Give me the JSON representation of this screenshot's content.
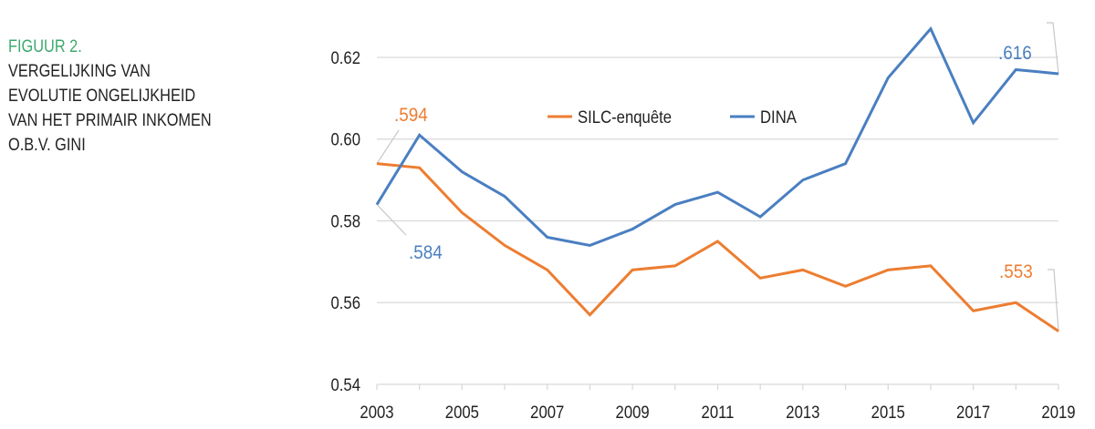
{
  "figure": {
    "label": "FIGUUR 2.",
    "title_lines": [
      "VERGELIJKING VAN",
      "EVOLUTIE ONGELIJKHEID",
      "VAN HET PRIMAIR INKOMEN",
      "O.B.V. GINI"
    ]
  },
  "colors": {
    "label_green": "#3daa6e",
    "silc": "#ed7d31",
    "dina": "#4a7fc1"
  },
  "chart_data": {
    "type": "line",
    "title": "",
    "xlabel": "",
    "ylabel": "",
    "x": [
      2003,
      2004,
      2005,
      2006,
      2007,
      2008,
      2009,
      2010,
      2011,
      2012,
      2013,
      2014,
      2015,
      2016,
      2017,
      2018,
      2019
    ],
    "xticks": [
      "2003",
      "2005",
      "2007",
      "2009",
      "2011",
      "2013",
      "2015",
      "2017",
      "2019"
    ],
    "yticks": [
      "0.54",
      "0.56",
      "0.58",
      "0.60",
      "0.62"
    ],
    "ylim": [
      0.54,
      0.62
    ],
    "grid": "horizontal",
    "legend_position": "top-center",
    "series": [
      {
        "name": "SILC-enquête",
        "color": "#ed7d31",
        "values": [
          0.594,
          0.593,
          0.582,
          0.574,
          0.568,
          0.557,
          0.568,
          0.569,
          0.575,
          0.566,
          0.568,
          0.564,
          0.568,
          0.569,
          0.558,
          0.56,
          0.553
        ]
      },
      {
        "name": "DINA",
        "color": "#4a7fc1",
        "values": [
          0.584,
          0.601,
          0.592,
          0.586,
          0.576,
          0.574,
          0.578,
          0.584,
          0.587,
          0.581,
          0.59,
          0.594,
          0.615,
          0.627,
          0.604,
          0.617,
          0.616
        ]
      }
    ],
    "annotations": [
      {
        "text": ".594",
        "series": "SILC-enquête",
        "x": 2003
      },
      {
        "text": ".584",
        "series": "DINA",
        "x": 2003
      },
      {
        "text": ".616",
        "series": "DINA",
        "x": 2019
      },
      {
        "text": ".553",
        "series": "SILC-enquête",
        "x": 2019
      }
    ]
  }
}
